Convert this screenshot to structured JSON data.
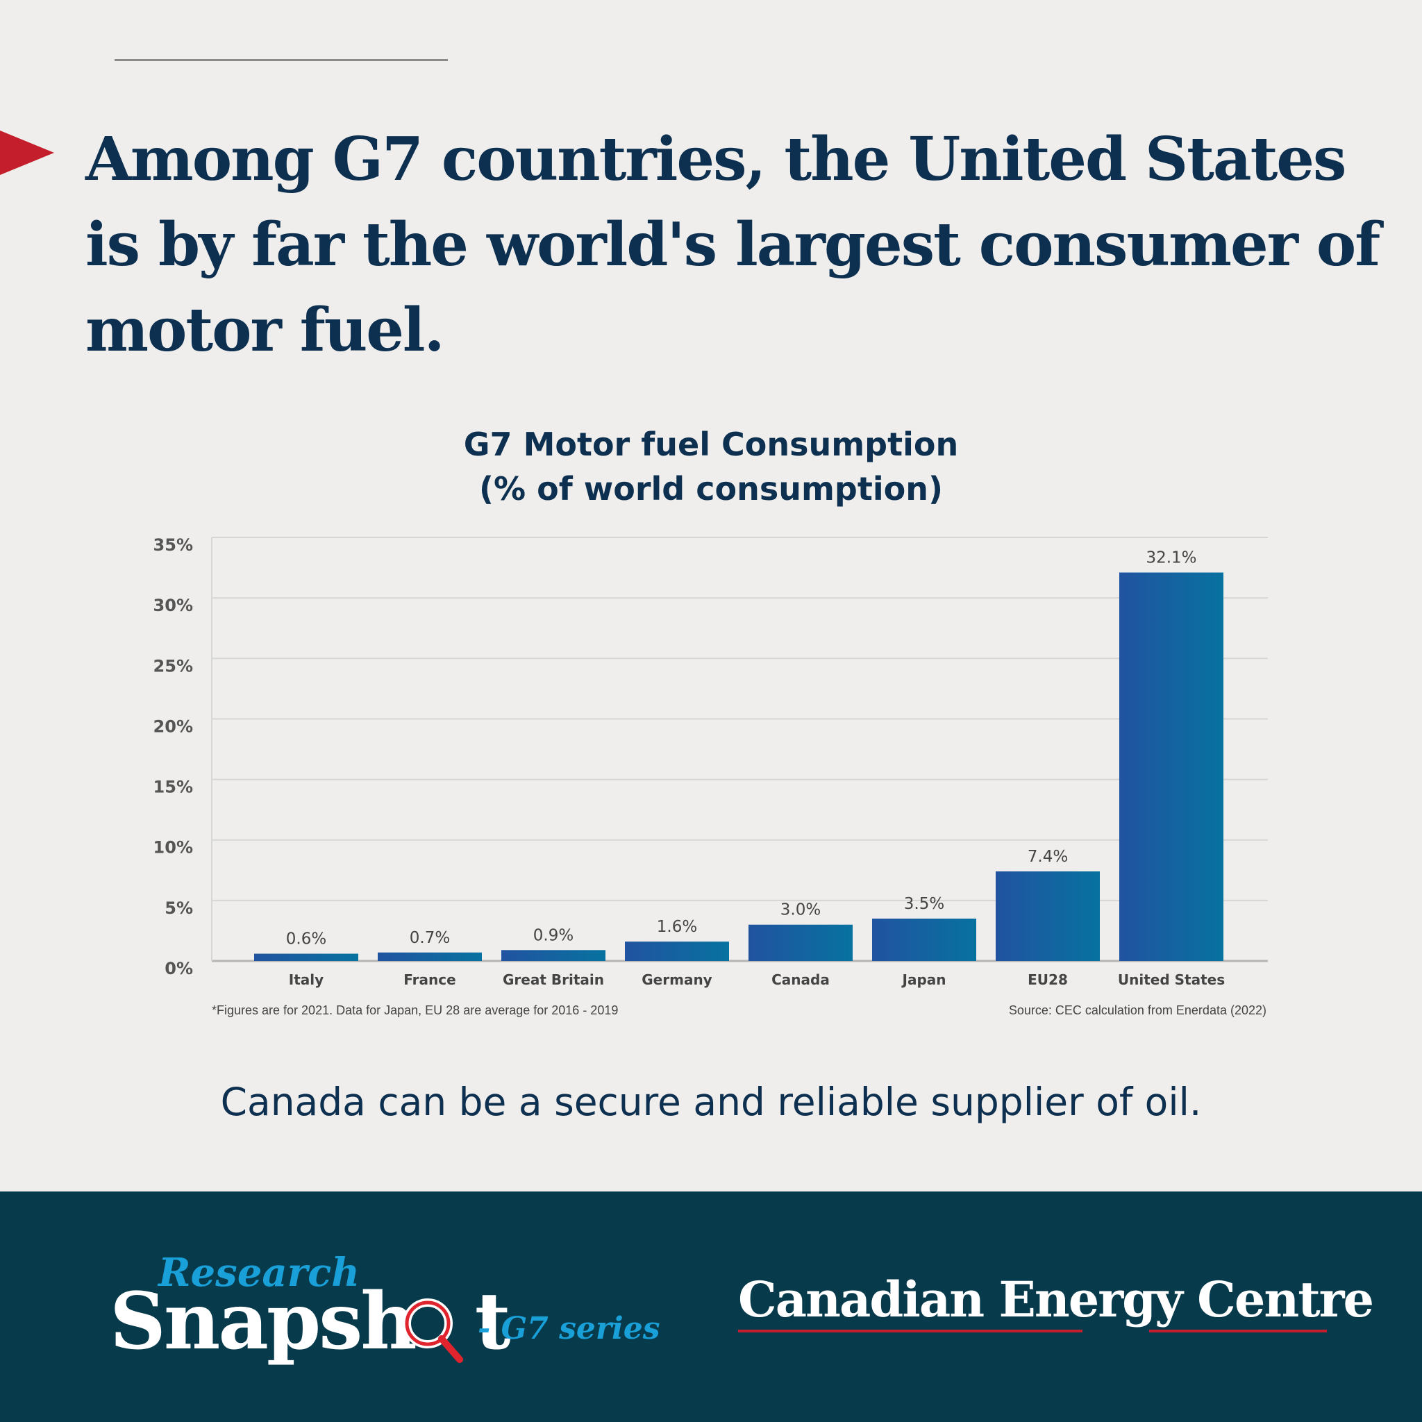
{
  "headline": "Among G7 countries, the United States is by far the world's largest consumer of motor fuel.",
  "chart_data": {
    "type": "bar",
    "title": "G7 Motor fuel Consumption",
    "subtitle": "(% of world consumption)",
    "categories": [
      "Italy",
      "France",
      "Great Britain",
      "Germany",
      "Canada",
      "Japan",
      "EU28",
      "United States"
    ],
    "values": [
      0.6,
      0.7,
      0.9,
      1.6,
      3.0,
      3.5,
      7.4,
      32.1
    ],
    "value_labels": [
      "0.6%",
      "0.7%",
      "0.9%",
      "1.6%",
      "3.0%",
      "3.5%",
      "7.4%",
      "32.1%"
    ],
    "yticks": [
      "0%",
      "5%",
      "10%",
      "15%",
      "20%",
      "25%",
      "30%",
      "35%"
    ],
    "ylim": [
      0,
      35
    ],
    "grid": true,
    "bar_colors": [
      "#2153a0",
      "#0772a0"
    ]
  },
  "footnote": "*Figures are for 2021. Data for Japan, EU 28 are average for 2016 - 2019",
  "source": "Source: CEC calculation from Enerdata (2022)",
  "tagline": "Canada can be a secure and reliable supplier of oil.",
  "footer": {
    "research": "Research",
    "snapshot": "Snapsh",
    "snapshot_end": "t",
    "series": "- G7 series",
    "org": "Canadian Energy Centre"
  },
  "colors": {
    "navy": "#0d3050",
    "accent_red": "#c41e2c",
    "footer_bg": "#073a4b",
    "brand_blue": "#1aa0d8"
  }
}
